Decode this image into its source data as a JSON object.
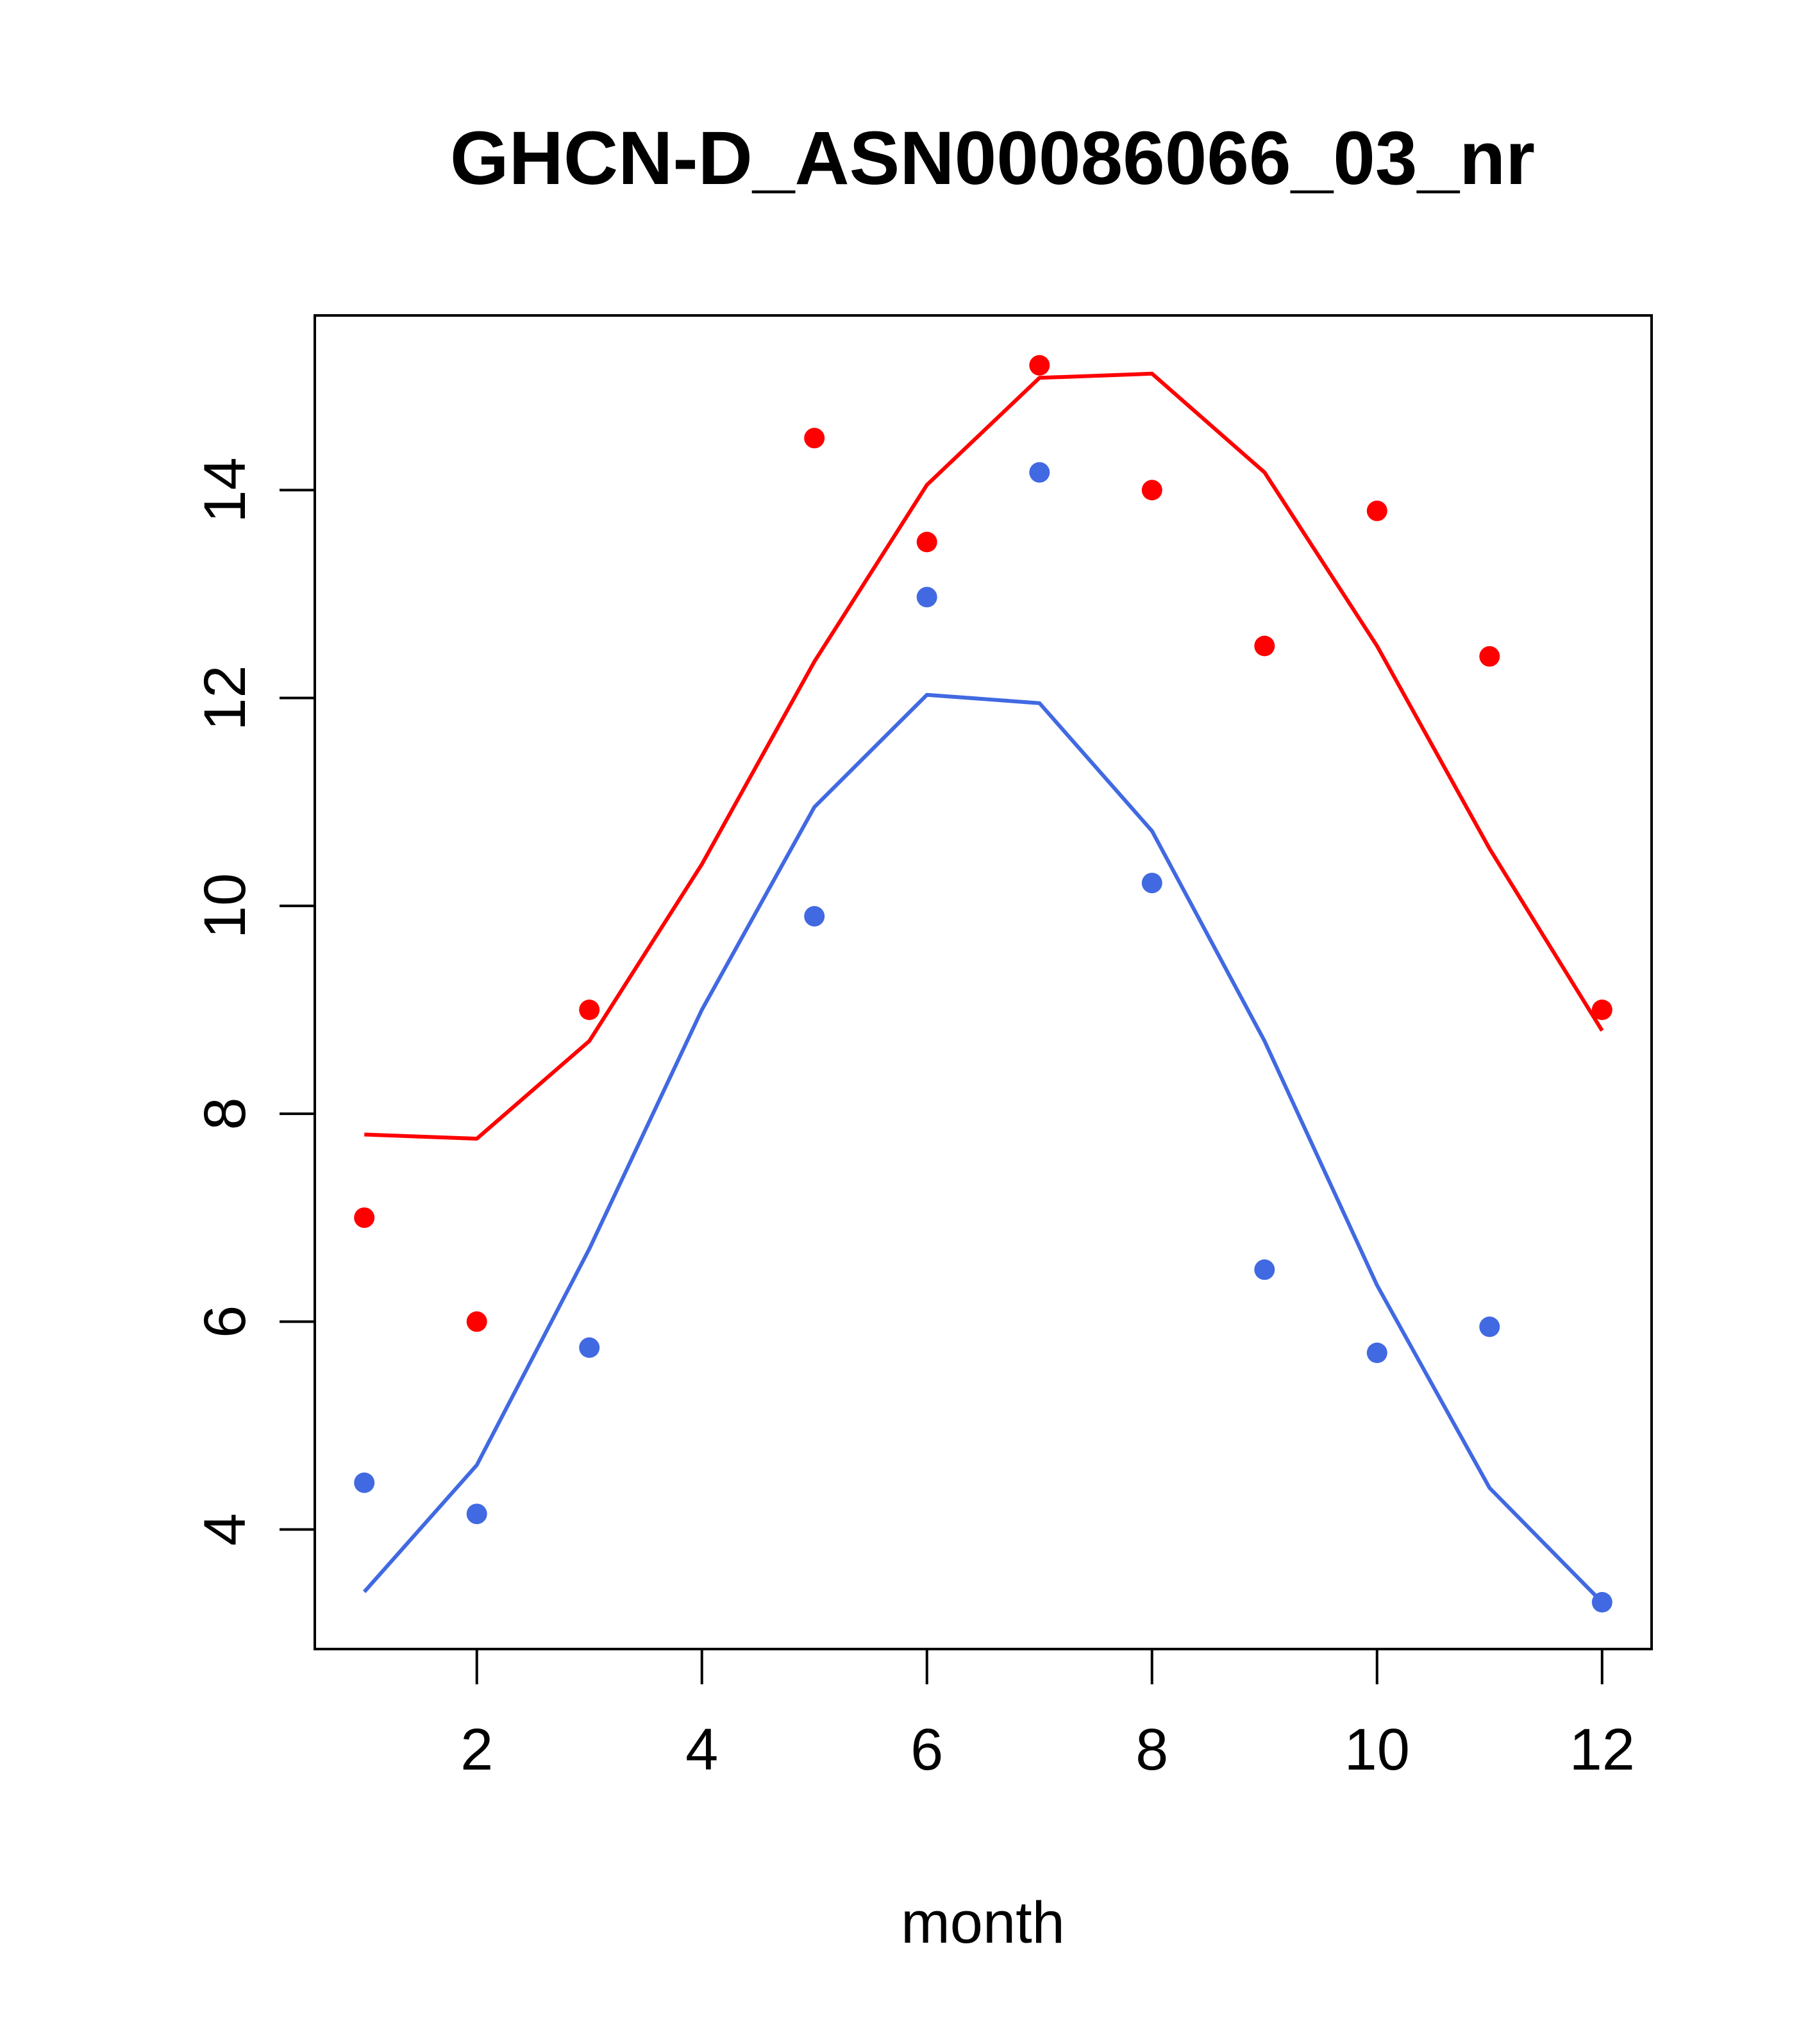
{
  "chart_data": {
    "type": "line",
    "title": "GHCN-D_ASN00086066_03_nr",
    "xlabel": "month",
    "ylabel": "",
    "xlim": [
      0.56,
      12.44
    ],
    "ylim": [
      2.85,
      15.68
    ],
    "x_ticks": [
      2,
      4,
      6,
      8,
      10,
      12
    ],
    "y_ticks": [
      4,
      6,
      8,
      10,
      12,
      14
    ],
    "grid": false,
    "legend": "none",
    "x": [
      1,
      2,
      3,
      4,
      5,
      6,
      7,
      8,
      9,
      10,
      11,
      12
    ],
    "series": [
      {
        "color": "#ff0000",
        "line": [
          7.8,
          7.76,
          8.7,
          10.4,
          12.35,
          14.05,
          15.08,
          15.12,
          14.17,
          12.5,
          10.55,
          8.8
        ],
        "points": [
          {
            "x": 1,
            "y": 7.0
          },
          {
            "x": 2,
            "y": 6.0
          },
          {
            "x": 3,
            "y": 9.0
          },
          {
            "x": 5,
            "y": 14.5
          },
          {
            "x": 6,
            "y": 13.5
          },
          {
            "x": 7,
            "y": 15.2
          },
          {
            "x": 8,
            "y": 14.0
          },
          {
            "x": 9,
            "y": 12.5
          },
          {
            "x": 10,
            "y": 13.8
          },
          {
            "x": 11,
            "y": 12.4
          },
          {
            "x": 12,
            "y": 9.0
          }
        ]
      },
      {
        "color": "#4169e1",
        "line": [
          3.4,
          4.62,
          6.7,
          9.0,
          10.95,
          12.03,
          11.95,
          10.72,
          8.7,
          6.35,
          4.4,
          3.3
        ],
        "points": [
          {
            "x": 1,
            "y": 4.45
          },
          {
            "x": 2,
            "y": 4.15
          },
          {
            "x": 3,
            "y": 5.75
          },
          {
            "x": 5,
            "y": 9.9
          },
          {
            "x": 6,
            "y": 12.97
          },
          {
            "x": 7,
            "y": 14.17
          },
          {
            "x": 8,
            "y": 10.22
          },
          {
            "x": 9,
            "y": 6.5
          },
          {
            "x": 10,
            "y": 5.7
          },
          {
            "x": 11,
            "y": 5.95
          },
          {
            "x": 12,
            "y": 3.3
          }
        ]
      }
    ]
  }
}
